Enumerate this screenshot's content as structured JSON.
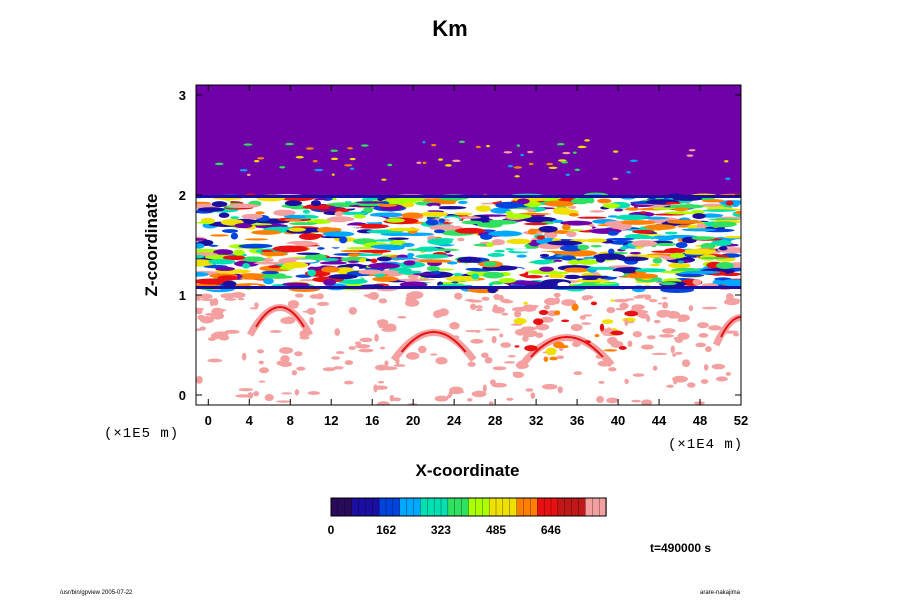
{
  "chart_data": {
    "type": "heatmap",
    "title": "Km",
    "xlabel": "X-coordinate",
    "ylabel": "Z-coordinate",
    "x_unit": "(×1E4 m)",
    "y_unit": "(×1E5 m)",
    "xlim": [
      -1.2,
      52
    ],
    "ylim": [
      -0.1,
      3.1
    ],
    "xticks": [
      "0",
      "4",
      "8",
      "12",
      "16",
      "20",
      "24",
      "28",
      "32",
      "36",
      "40",
      "44",
      "48",
      "52"
    ],
    "yticks": [
      "0",
      "1",
      "2",
      "3"
    ],
    "colorbar": {
      "ticks": [
        "0",
        "162",
        "323",
        "485",
        "646"
      ],
      "range": [
        0,
        808
      ],
      "colors": [
        "#2a0a5a",
        "#1a0fa0",
        "#0044dd",
        "#00a8ff",
        "#00e0b0",
        "#30e060",
        "#aaff00",
        "#f0e000",
        "#ff8000",
        "#e81010",
        "#c01818",
        "#f4a0a0"
      ]
    },
    "regions": [
      {
        "z_range": [
          2.0,
          3.1
        ],
        "value": 0,
        "description": "uniform minimum"
      },
      {
        "z_range": [
          1.05,
          2.0
        ],
        "value": 400,
        "description": "turbulent layer, mixed values"
      },
      {
        "z_range": [
          -0.1,
          1.0
        ],
        "value": 700,
        "description": "sparse high-value patches"
      }
    ]
  },
  "annotations": {
    "time": "t=490000 s",
    "footer_left": "/usr/bin/gpview 2005-07-22",
    "footer_right": "arare-nakajima"
  }
}
